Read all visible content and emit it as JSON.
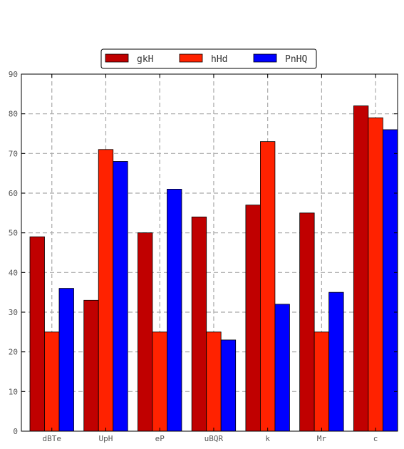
{
  "chart_data": {
    "type": "bar",
    "title": "",
    "xlabel": "",
    "ylabel": "",
    "categories": [
      "dBTe",
      "UpH",
      "eP",
      "uBQR",
      "k",
      "Mr",
      "c"
    ],
    "series": [
      {
        "name": "gkH",
        "color": "#c00000",
        "values": [
          49,
          33,
          50,
          54,
          57,
          55,
          82
        ]
      },
      {
        "name": "hHd",
        "color": "#ff2200",
        "values": [
          25,
          71,
          25,
          25,
          73,
          25,
          79
        ]
      },
      {
        "name": "PnHQ",
        "color": "#0000ff",
        "values": [
          36,
          68,
          61,
          23,
          32,
          35,
          76
        ]
      }
    ],
    "ylim": [
      0,
      90
    ],
    "yticks": [
      0,
      10,
      20,
      30,
      40,
      50,
      60,
      70,
      80,
      90
    ],
    "grid": true,
    "legend": "top-center"
  }
}
